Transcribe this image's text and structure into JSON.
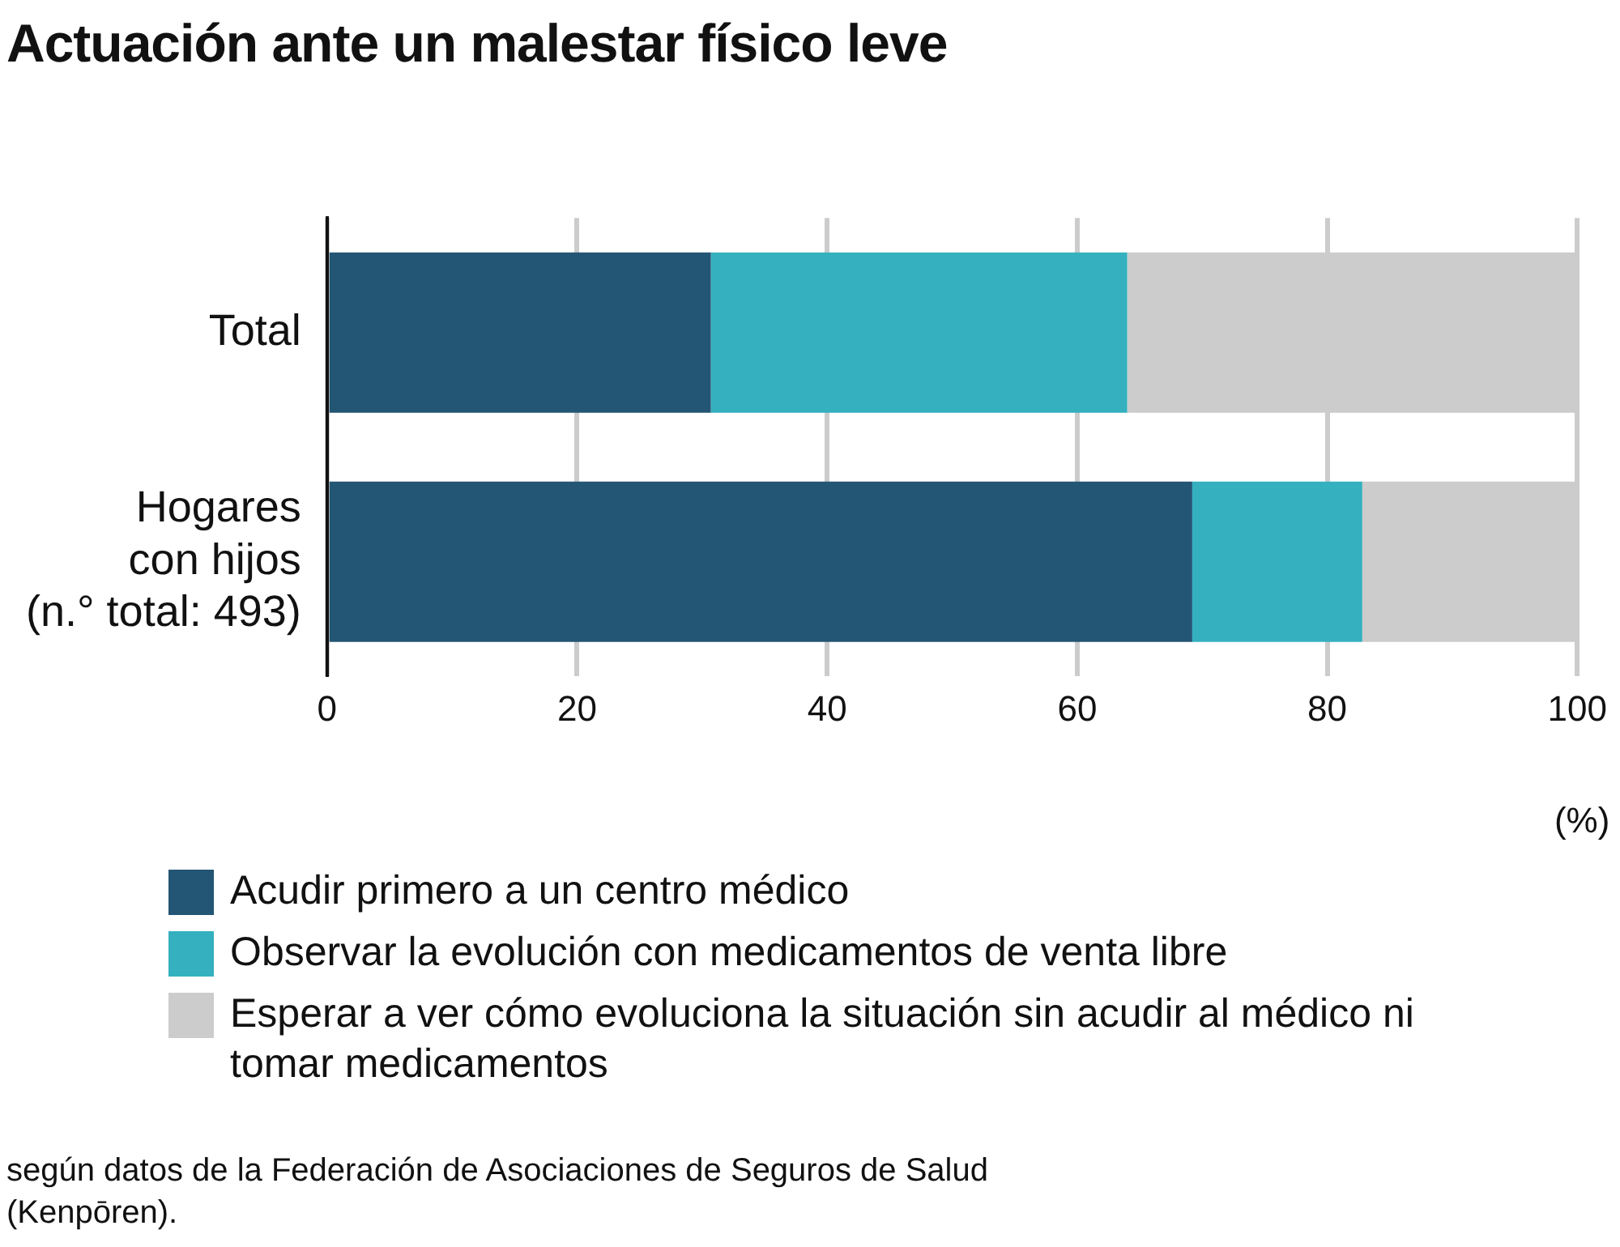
{
  "chart_data": {
    "type": "bar",
    "orientation": "horizontal",
    "stacked": true,
    "title": "Actuación ante un malestar físico leve",
    "xlabel": "(%)",
    "categories": [
      "Total",
      "Hogares\ncon hijos\n(n.° total: 493)"
    ],
    "series": [
      {
        "name": "Acudir primero a un centro médico",
        "color": "#235574",
        "values": [
          30.7,
          69.2
        ]
      },
      {
        "name": "Observar la evolución con medicamentos de venta libre",
        "color": "#34b0bf",
        "values": [
          33.3,
          13.6
        ]
      },
      {
        "name": "Esperar a ver cómo evoluciona la situación sin acudir al médico ni tomar medicamentos",
        "color": "#cccccc",
        "values": [
          36.0,
          17.2
        ]
      }
    ],
    "xlim": [
      0,
      100
    ],
    "xticks": [
      0,
      20,
      40,
      60,
      80,
      100
    ],
    "grid": "x",
    "legend": "bottom",
    "annotations": [
      "según datos de la Federación de Asociaciones de Seguros de Salud (Kenpōren)."
    ]
  }
}
